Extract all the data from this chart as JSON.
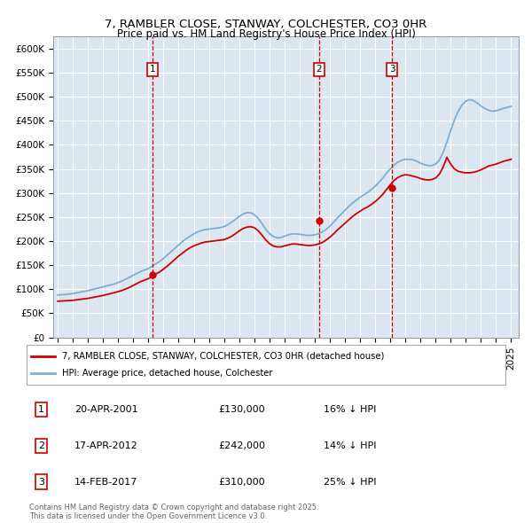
{
  "title": "7, RAMBLER CLOSE, STANWAY, COLCHESTER, CO3 0HR",
  "subtitle": "Price paid vs. HM Land Registry's House Price Index (HPI)",
  "ylim": [
    0,
    625000
  ],
  "xlim": [
    1994.7,
    2025.5
  ],
  "yticks": [
    0,
    50000,
    100000,
    150000,
    200000,
    250000,
    300000,
    350000,
    400000,
    450000,
    500000,
    550000,
    600000
  ],
  "ytick_labels": [
    "£0",
    "£50K",
    "£100K",
    "£150K",
    "£200K",
    "£250K",
    "£300K",
    "£350K",
    "£400K",
    "£450K",
    "£500K",
    "£550K",
    "£600K"
  ],
  "xticks": [
    1995,
    1996,
    1997,
    1998,
    1999,
    2000,
    2001,
    2002,
    2003,
    2004,
    2005,
    2006,
    2007,
    2008,
    2009,
    2010,
    2011,
    2012,
    2013,
    2014,
    2015,
    2016,
    2017,
    2018,
    2019,
    2020,
    2021,
    2022,
    2023,
    2024,
    2025
  ],
  "plot_bg_color": "#dce6f1",
  "grid_color": "#ffffff",
  "red_line_color": "#cc0000",
  "blue_line_color": "#7bafd4",
  "transaction_color": "#cc0000",
  "marker_y": 557000,
  "transactions": [
    {
      "num": 1,
      "year": 2001.29,
      "price": 130000,
      "date": "20-APR-2001",
      "pct": "16%",
      "dir": "↓"
    },
    {
      "num": 2,
      "year": 2012.29,
      "price": 242000,
      "date": "17-APR-2012",
      "pct": "14%",
      "dir": "↓"
    },
    {
      "num": 3,
      "year": 2017.12,
      "price": 310000,
      "date": "14-FEB-2017",
      "pct": "25%",
      "dir": "↓"
    }
  ],
  "legend_label_red": "7, RAMBLER CLOSE, STANWAY, COLCHESTER, CO3 0HR (detached house)",
  "legend_label_blue": "HPI: Average price, detached house, Colchester",
  "footer": "Contains HM Land Registry data © Crown copyright and database right 2025.\nThis data is licensed under the Open Government Licence v3.0.",
  "hpi_x": [
    1995.0,
    1995.25,
    1995.5,
    1995.75,
    1996.0,
    1996.25,
    1996.5,
    1996.75,
    1997.0,
    1997.25,
    1997.5,
    1997.75,
    1998.0,
    1998.25,
    1998.5,
    1998.75,
    1999.0,
    1999.25,
    1999.5,
    1999.75,
    2000.0,
    2000.25,
    2000.5,
    2000.75,
    2001.0,
    2001.25,
    2001.5,
    2001.75,
    2002.0,
    2002.25,
    2002.5,
    2002.75,
    2003.0,
    2003.25,
    2003.5,
    2003.75,
    2004.0,
    2004.25,
    2004.5,
    2004.75,
    2005.0,
    2005.25,
    2005.5,
    2005.75,
    2006.0,
    2006.25,
    2006.5,
    2006.75,
    2007.0,
    2007.25,
    2007.5,
    2007.75,
    2008.0,
    2008.25,
    2008.5,
    2008.75,
    2009.0,
    2009.25,
    2009.5,
    2009.75,
    2010.0,
    2010.25,
    2010.5,
    2010.75,
    2011.0,
    2011.25,
    2011.5,
    2011.75,
    2012.0,
    2012.25,
    2012.5,
    2012.75,
    2013.0,
    2013.25,
    2013.5,
    2013.75,
    2014.0,
    2014.25,
    2014.5,
    2014.75,
    2015.0,
    2015.25,
    2015.5,
    2015.75,
    2016.0,
    2016.25,
    2016.5,
    2016.75,
    2017.0,
    2017.25,
    2017.5,
    2017.75,
    2018.0,
    2018.25,
    2018.5,
    2018.75,
    2019.0,
    2019.25,
    2019.5,
    2019.75,
    2020.0,
    2020.25,
    2020.5,
    2020.75,
    2021.0,
    2021.25,
    2021.5,
    2021.75,
    2022.0,
    2022.25,
    2022.5,
    2022.75,
    2023.0,
    2023.25,
    2023.5,
    2023.75,
    2024.0,
    2024.25,
    2024.5,
    2024.75,
    2025.0
  ],
  "hpi_y": [
    88000,
    88500,
    89000,
    90000,
    91000,
    92500,
    94000,
    95500,
    97000,
    99000,
    101000,
    103000,
    105000,
    107000,
    109000,
    111000,
    114000,
    117000,
    121000,
    125000,
    129000,
    133000,
    137000,
    140000,
    143000,
    148000,
    153000,
    158000,
    164000,
    171000,
    178000,
    185000,
    192000,
    199000,
    205000,
    210000,
    215000,
    219000,
    222000,
    224000,
    225000,
    226000,
    227000,
    228000,
    230000,
    234000,
    239000,
    245000,
    251000,
    256000,
    259000,
    259000,
    255000,
    248000,
    237000,
    225000,
    216000,
    210000,
    207000,
    207000,
    210000,
    213000,
    215000,
    215000,
    214000,
    213000,
    212000,
    212000,
    213000,
    215000,
    219000,
    224000,
    231000,
    239000,
    248000,
    256000,
    264000,
    272000,
    279000,
    285000,
    291000,
    296000,
    301000,
    307000,
    314000,
    322000,
    331000,
    341000,
    350000,
    358000,
    364000,
    368000,
    370000,
    370000,
    369000,
    366000,
    362000,
    359000,
    357000,
    357000,
    360000,
    368000,
    384000,
    406000,
    430000,
    452000,
    470000,
    483000,
    491000,
    494000,
    492000,
    487000,
    481000,
    476000,
    472000,
    470000,
    471000,
    473000,
    476000,
    478000,
    480000
  ],
  "red_y": [
    75000,
    75500,
    76000,
    76500,
    77000,
    78000,
    79000,
    80000,
    81000,
    82500,
    84000,
    85500,
    87000,
    89000,
    91000,
    93000,
    95000,
    97500,
    100500,
    104000,
    108000,
    112000,
    116000,
    119000,
    122000,
    127000,
    132000,
    136000,
    142000,
    148000,
    155000,
    162000,
    169000,
    175000,
    181000,
    186000,
    190000,
    193000,
    196000,
    198000,
    199000,
    200000,
    201000,
    202000,
    203000,
    206000,
    210000,
    215000,
    221000,
    226000,
    229000,
    230000,
    228000,
    222000,
    213000,
    203000,
    195000,
    190000,
    188000,
    188000,
    190000,
    192000,
    194000,
    194000,
    193000,
    192000,
    191000,
    191000,
    192000,
    194000,
    197000,
    202000,
    208000,
    215000,
    223000,
    230000,
    237000,
    244000,
    251000,
    257000,
    262000,
    267000,
    271000,
    276000,
    282000,
    289000,
    297000,
    307000,
    317000,
    326000,
    332000,
    336000,
    338000,
    337000,
    335000,
    333000,
    330000,
    328000,
    327000,
    328000,
    331000,
    339000,
    354000,
    374000,
    360000,
    350000,
    345000,
    343000,
    342000,
    342000,
    343000,
    345000,
    348000,
    352000,
    356000,
    358000,
    360000,
    363000,
    366000,
    368000,
    370000
  ]
}
